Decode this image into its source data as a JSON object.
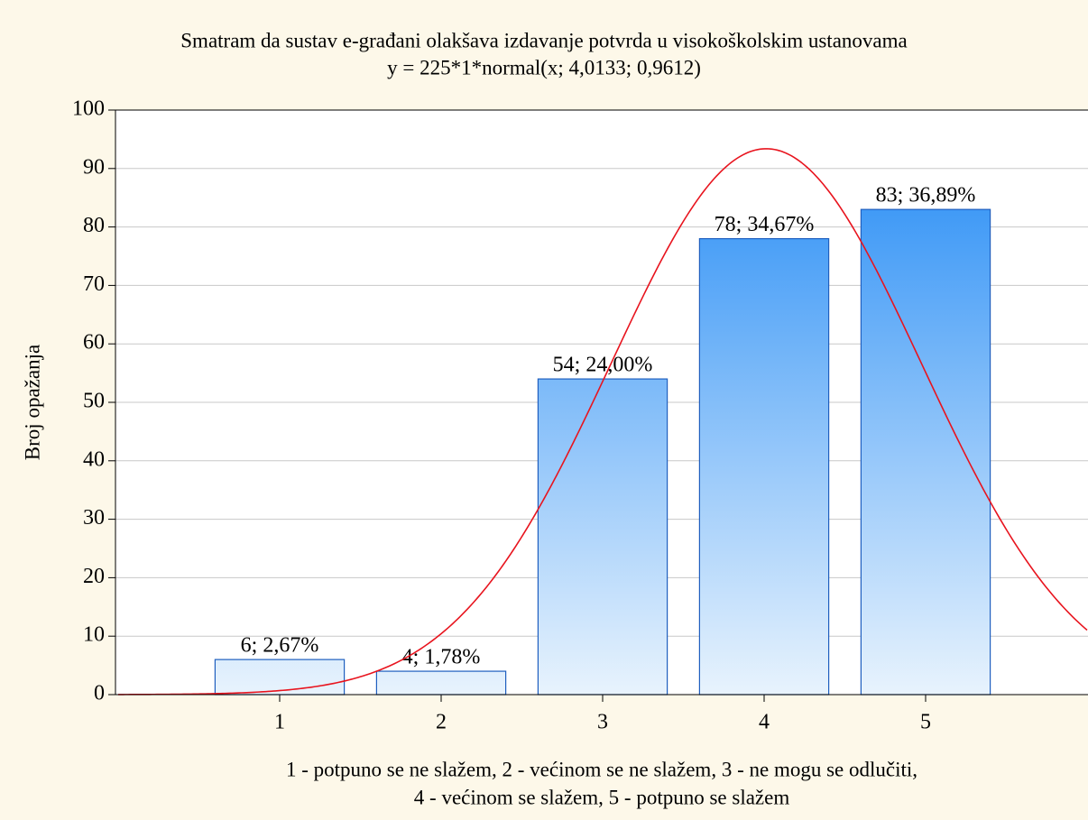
{
  "chart_data": {
    "type": "histogram",
    "title": "Smatram da sustav e-građani olakšava izdavanje potvrda u visokoškolskim ustanovama",
    "subtitle": "y = 225*1*normal(x; 4,0133; 0,9612)",
    "ylabel": "Broj opažanja",
    "xlabel": [
      "1 - potpuno se ne slažem, 2 - većinom se ne slažem, 3 - ne mogu se odlučiti,",
      "4 - većinom se slažem, 5 - potpuno se slažem"
    ],
    "x": [
      1,
      2,
      3,
      4,
      5
    ],
    "values": [
      6,
      4,
      54,
      78,
      83
    ],
    "value_labels": [
      "6; 2,67%",
      "4; 1,78%",
      "54; 24,00%",
      "78; 34,67%",
      "83; 36,89%"
    ],
    "color": "#2a8cf5",
    "curve": {
      "n": 225,
      "bin_width": 1,
      "mean": 4.0133,
      "sd": 0.9612,
      "color": "#e8141e"
    },
    "xlim": [
      0,
      6
    ],
    "xticks": [
      1,
      2,
      3,
      4,
      5
    ],
    "ylim": [
      0,
      100
    ],
    "yticks": [
      0,
      10,
      20,
      30,
      40,
      50,
      60,
      70,
      80,
      90,
      100
    ],
    "grid": true
  }
}
